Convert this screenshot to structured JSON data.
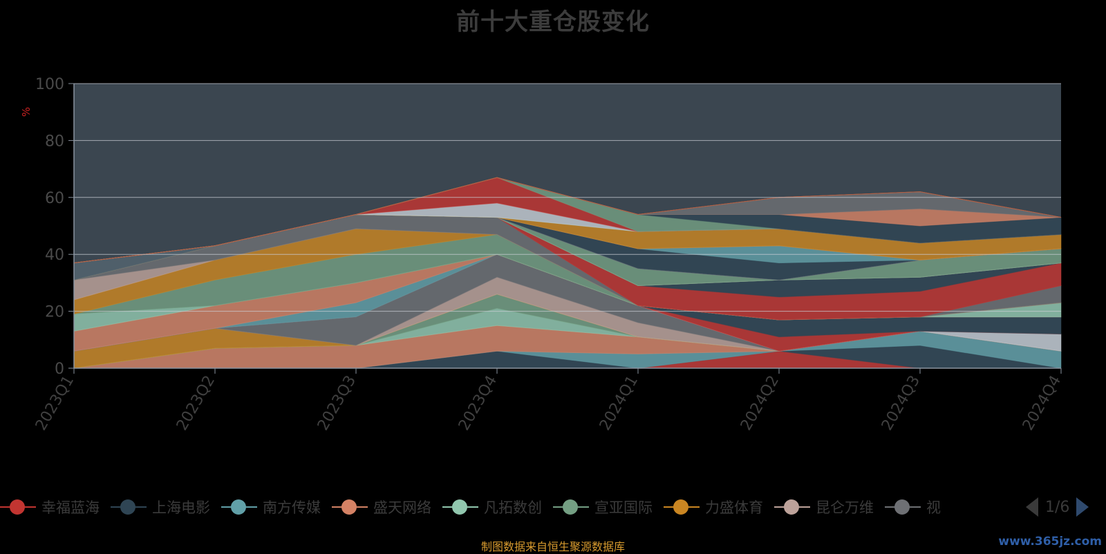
{
  "chart_data": {
    "type": "area",
    "title": "前十大重仓股变化",
    "ylabel": "%",
    "ylim": [
      0,
      100
    ],
    "yticks": [
      0,
      20,
      40,
      60,
      80,
      100
    ],
    "grid": true,
    "categories": [
      "2023Q1",
      "2023Q2",
      "2023Q3",
      "2023Q4",
      "2024Q1",
      "2024Q2",
      "2024Q3",
      "2024Q4"
    ],
    "legend_position": "bottom",
    "series": [
      {
        "name": "幸福蓝海",
        "color": "#c23531",
        "values": [
          0,
          0,
          0,
          0,
          0,
          6,
          0,
          0
        ]
      },
      {
        "name": "上海电影",
        "color": "#2f4554",
        "values": [
          0,
          0,
          0,
          6,
          0,
          0,
          8,
          0
        ]
      },
      {
        "name": "南方传媒",
        "color": "#61a0a8",
        "values": [
          0,
          0,
          0,
          0,
          5,
          0,
          5,
          6
        ]
      },
      {
        "name": "盛天网络",
        "color": "#d48265",
        "values": [
          0,
          7,
          8,
          9,
          6,
          0,
          0,
          0
        ]
      },
      {
        "name": "凡拓数创",
        "color": "#91c7ae",
        "values": [
          0,
          0,
          0,
          6,
          0,
          0,
          0,
          0
        ]
      },
      {
        "name": "宣亚国际",
        "color": "#749f83",
        "values": [
          0,
          0,
          0,
          5,
          0,
          0,
          0,
          0
        ]
      },
      {
        "name": "力盛体育",
        "color": "#ca8622",
        "values": [
          6,
          7,
          0,
          0,
          0,
          0,
          0,
          0
        ]
      },
      {
        "name": "昆仑万维",
        "color": "#bda29a",
        "values": [
          0,
          0,
          0,
          6,
          5,
          0,
          0,
          0
        ]
      },
      {
        "name": "",
        "color": "#6e7074",
        "values": [
          0,
          0,
          10,
          8,
          6,
          0,
          0,
          0
        ]
      },
      {
        "name": "",
        "color": "#546570",
        "values": [
          0,
          0,
          0,
          0,
          0,
          0,
          0,
          0
        ]
      },
      {
        "name": "",
        "color": "#c4ccd3",
        "values": [
          0,
          0,
          0,
          0,
          0,
          0,
          0,
          6
        ]
      },
      {
        "name": "",
        "color": "#c23531",
        "values": [
          0,
          0,
          0,
          0,
          0,
          5,
          0,
          0
        ]
      },
      {
        "name": "",
        "color": "#2f4554",
        "values": [
          0,
          0,
          0,
          0,
          0,
          6,
          5,
          6
        ]
      },
      {
        "name": "",
        "color": "#61a0a8",
        "values": [
          0,
          0,
          5,
          0,
          0,
          0,
          0,
          0
        ]
      },
      {
        "name": "",
        "color": "#d48265",
        "values": [
          7,
          8,
          7,
          0,
          0,
          0,
          0,
          0
        ]
      },
      {
        "name": "",
        "color": "#91c7ae",
        "values": [
          6,
          0,
          0,
          0,
          0,
          0,
          0,
          5
        ]
      },
      {
        "name": "",
        "color": "#749f83",
        "values": [
          0,
          9,
          10,
          7,
          0,
          0,
          0,
          0
        ]
      },
      {
        "name": "",
        "color": "#ca8622",
        "values": [
          5,
          7,
          9,
          0,
          0,
          0,
          0,
          0
        ]
      },
      {
        "name": "",
        "color": "#bda29a",
        "values": [
          7,
          0,
          0,
          0,
          0,
          0,
          0,
          0
        ]
      },
      {
        "name": "",
        "color": "#6e7074",
        "values": [
          0,
          5,
          5,
          6,
          0,
          0,
          0,
          6
        ]
      },
      {
        "name": "",
        "color": "#c23531",
        "values": [
          0,
          0,
          0,
          0,
          7,
          8,
          9,
          8
        ]
      },
      {
        "name": "",
        "color": "#2f4554",
        "values": [
          0,
          0,
          0,
          0,
          0,
          6,
          5,
          0
        ]
      },
      {
        "name": "",
        "color": "#61a0a8",
        "values": [
          0,
          0,
          0,
          0,
          0,
          0,
          0,
          0
        ]
      },
      {
        "name": "",
        "color": "#d48265",
        "values": [
          0,
          0,
          0,
          0,
          0,
          0,
          0,
          0
        ]
      },
      {
        "name": "",
        "color": "#91c7ae",
        "values": [
          0,
          0,
          0,
          0,
          0,
          0,
          0,
          0
        ]
      },
      {
        "name": "",
        "color": "#749f83",
        "values": [
          0,
          0,
          0,
          0,
          6,
          0,
          6,
          5
        ]
      },
      {
        "name": "",
        "color": "#ca8622",
        "values": [
          0,
          0,
          0,
          0,
          0,
          0,
          0,
          0
        ]
      },
      {
        "name": "",
        "color": "#bda29a",
        "values": [
          0,
          0,
          0,
          0,
          0,
          0,
          0,
          0
        ]
      },
      {
        "name": "",
        "color": "#6e7074",
        "values": [
          0,
          0,
          0,
          0,
          0,
          0,
          0,
          0
        ]
      },
      {
        "name": "",
        "color": "#546570",
        "values": [
          6,
          0,
          0,
          0,
          0,
          0,
          0,
          0
        ]
      },
      {
        "name": "",
        "color": "#c4ccd3",
        "values": [
          0,
          0,
          0,
          0,
          0,
          0,
          0,
          0
        ]
      },
      {
        "name": "",
        "color": "#2f4554",
        "values": [
          0,
          0,
          0,
          0,
          7,
          6,
          0,
          0
        ]
      },
      {
        "name": "",
        "color": "#61a0a8",
        "values": [
          0,
          0,
          0,
          0,
          0,
          6,
          0,
          0
        ]
      },
      {
        "name": "",
        "color": "#d48265",
        "values": [
          0,
          0,
          0,
          0,
          0,
          0,
          0,
          0
        ]
      },
      {
        "name": "",
        "color": "#ca8622",
        "values": [
          0,
          0,
          0,
          0,
          6,
          6,
          6,
          5
        ]
      },
      {
        "name": "",
        "color": "#749f83",
        "values": [
          0,
          0,
          0,
          0,
          0,
          0,
          0,
          0
        ]
      },
      {
        "name": "",
        "color": "#c4ccd3",
        "values": [
          0,
          0,
          0,
          5,
          0,
          0,
          0,
          0
        ]
      },
      {
        "name": "",
        "color": "#c23531",
        "values": [
          0,
          0,
          0,
          9,
          0,
          0,
          0,
          0
        ]
      },
      {
        "name": "",
        "color": "#749f83",
        "values": [
          0,
          0,
          0,
          0,
          6,
          0,
          0,
          0
        ]
      },
      {
        "name": "",
        "color": "#2f4554",
        "values": [
          0,
          0,
          0,
          0,
          0,
          5,
          6,
          6
        ]
      },
      {
        "name": "",
        "color": "#d48265",
        "values": [
          0,
          0,
          0,
          0,
          0,
          0,
          6,
          0
        ]
      },
      {
        "name": "",
        "color": "#6e7074",
        "values": [
          0,
          0,
          0,
          0,
          0,
          6,
          6,
          0
        ]
      },
      {
        "name": "",
        "color": "#bda29a",
        "values": [
          0,
          0,
          0,
          0,
          0,
          0,
          0,
          0
        ]
      },
      {
        "name": "",
        "color": "#ca8622",
        "values": [
          0,
          0,
          0,
          0,
          0,
          0,
          0,
          0
        ]
      },
      {
        "name": "",
        "color": "#c23531",
        "values": [
          0,
          0,
          0,
          0,
          0,
          0,
          0,
          0
        ]
      }
    ]
  },
  "legend": {
    "items": [
      {
        "label": "幸福蓝海",
        "color": "#c23531"
      },
      {
        "label": "上海电影",
        "color": "#2f4554"
      },
      {
        "label": "南方传媒",
        "color": "#61a0a8"
      },
      {
        "label": "盛天网络",
        "color": "#d48265"
      },
      {
        "label": "凡拓数创",
        "color": "#91c7ae"
      },
      {
        "label": "宣亚国际",
        "color": "#749f83"
      },
      {
        "label": "力盛体育",
        "color": "#ca8622"
      },
      {
        "label": "昆仑万维",
        "color": "#bda29a"
      },
      {
        "label": "视",
        "color": "#6e7074"
      }
    ],
    "page_indicator": "1/6"
  },
  "source_note": "制图数据来自恒生聚源数据库",
  "watermark": "www.365jz.com"
}
